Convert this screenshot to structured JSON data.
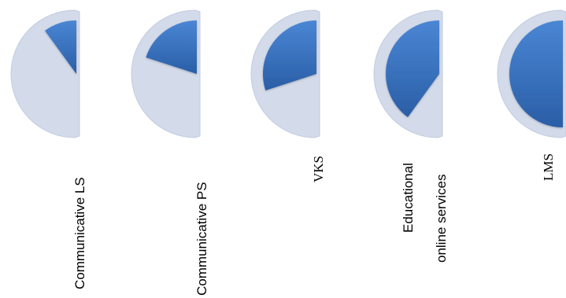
{
  "chart_data": {
    "type": "pie",
    "categories": [
      "Communicative  LS",
      "Communicative PS",
      "VKS",
      "Educational online services",
      "LMS"
    ],
    "label_lines": [
      [
        "Communicative  LS"
      ],
      [
        "Communicative PS"
      ],
      [
        "VKS"
      ],
      [
        "Educational",
        "online services"
      ],
      [
        "LMS"
      ]
    ],
    "values": [
      0.1,
      0.2,
      0.3,
      0.4,
      0.5
    ],
    "value_unit": "fraction of full circle",
    "title": "",
    "xlabel": "",
    "ylabel": "",
    "legend": "none",
    "grid": false,
    "colors": {
      "pie_background": "#d3dae9",
      "background_edge": "#c2cbe0",
      "slice_light": "#4a86d4",
      "slice_dark": "#2a5ea6",
      "label": "#000000"
    }
  }
}
